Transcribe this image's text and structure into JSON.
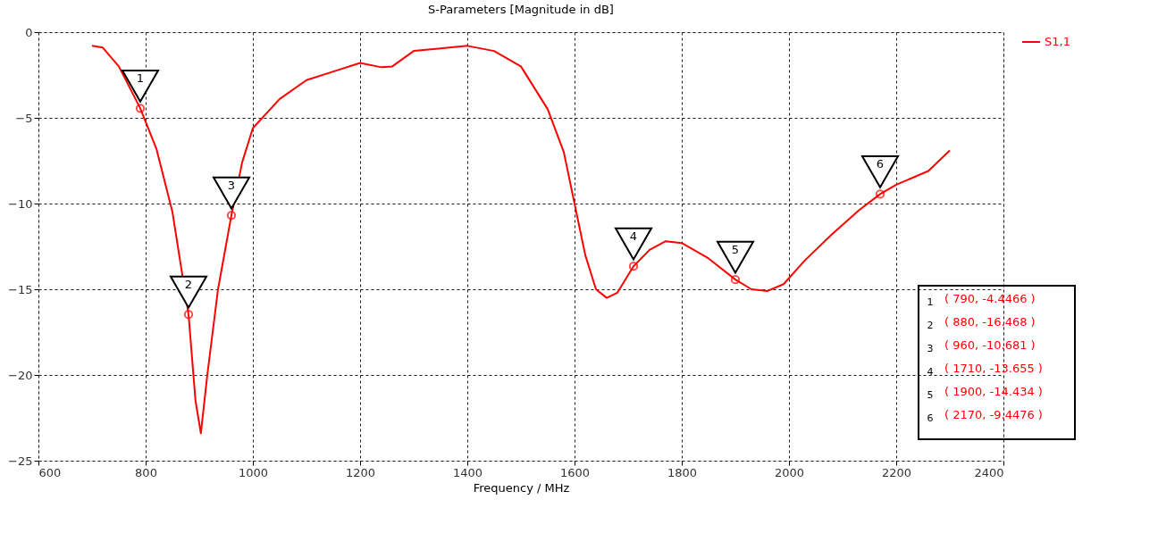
{
  "chart_data": {
    "type": "line",
    "title": "S-Parameters [Magnitude in dB]",
    "xlabel": "Frequency / MHz",
    "xlim": [
      600,
      2400
    ],
    "ylim": [
      -25,
      0
    ],
    "xticks": [
      600,
      800,
      1000,
      1200,
      1400,
      1600,
      1800,
      2000,
      2200,
      2400
    ],
    "yticks": [
      -25,
      -20,
      -15,
      -10,
      -5,
      0
    ],
    "grid": true,
    "legend": "top right",
    "series": [
      {
        "name": "S1,1",
        "color": "#ff0000",
        "marker": "none",
        "line_style": "solid",
        "x": [
          700,
          720,
          750,
          790,
          820,
          850,
          880,
          893,
          903,
          915,
          935,
          960,
          980,
          1000,
          1050,
          1100,
          1150,
          1200,
          1240,
          1260,
          1300,
          1350,
          1400,
          1450,
          1500,
          1550,
          1580,
          1600,
          1620,
          1640,
          1660,
          1680,
          1710,
          1740,
          1770,
          1800,
          1850,
          1900,
          1930,
          1960,
          1990,
          2030,
          2080,
          2130,
          2170,
          2200,
          2260,
          2300
        ],
        "values": [
          -0.8,
          -0.9,
          -2.0,
          -4.4466,
          -6.8,
          -10.5,
          -16.468,
          -21.5,
          -23.4,
          -20,
          -15,
          -10.681,
          -7.6,
          -5.6,
          -3.9,
          -2.8,
          -2.3,
          -1.8,
          -2.05,
          -2.0,
          -1.1,
          -0.95,
          -0.8,
          -1.1,
          -2.0,
          -4.5,
          -7,
          -10,
          -13,
          -15,
          -15.5,
          -15.2,
          -13.655,
          -12.7,
          -12.2,
          -12.3,
          -13.2,
          -14.434,
          -15.0,
          -15.1,
          -14.7,
          -13.3,
          -11.8,
          -10.4,
          -9.4476,
          -8.9,
          -8.1,
          -6.9
        ]
      },
      {
        "type": "scatter",
        "color": "#ff0000",
        "marker": "circle",
        "x": [
          790,
          880,
          960,
          1710,
          1900,
          2170
        ],
        "values": [
          -4.4466,
          -16.468,
          -10.681,
          -13.655,
          -14.434,
          -9.4476
        ]
      }
    ],
    "annotations": [
      {
        "text": "1",
        "x": 790,
        "y": -4.4466
      },
      {
        "text": "2",
        "x": 880,
        "y": -16.468
      },
      {
        "text": "3",
        "x": 960,
        "y": -10.681
      },
      {
        "text": "4",
        "x": 1710,
        "y": -13.655
      },
      {
        "text": "5",
        "x": 1900,
        "y": -14.434
      },
      {
        "text": "6",
        "x": 2170,
        "y": -9.4476
      },
      "( 790, -4.4466 )",
      "( 880, -16.468 )",
      "( 960, -10.681 )",
      "( 1710, -13.655 )",
      "( 1900, -14.434 )",
      "( 2170, -9.4476 )"
    ]
  }
}
